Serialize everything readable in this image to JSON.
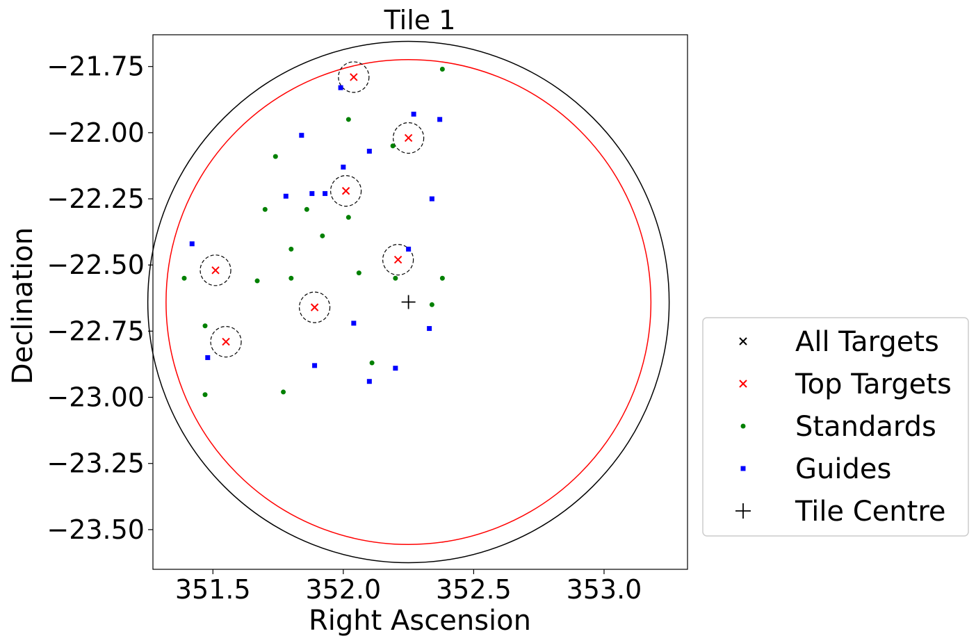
{
  "chart_data": {
    "type": "scatter",
    "title": "Tile 1",
    "xlabel": "Right Ascension",
    "ylabel": "Declination",
    "xlim": [
      351.27,
      353.32
    ],
    "ylim": [
      -23.65,
      -21.63
    ],
    "x_ticks": [
      351.5,
      352.0,
      352.5,
      353.0
    ],
    "x_tick_labels": [
      "351.5",
      "352.0",
      "352.5",
      "353.0"
    ],
    "y_ticks": [
      -21.75,
      -22.0,
      -22.25,
      -22.5,
      -22.75,
      -23.0,
      -23.25,
      -23.5
    ],
    "y_tick_labels": [
      "−21.75",
      "−22.00",
      "−22.25",
      "−22.50",
      "−22.75",
      "−23.00",
      "−23.25",
      "−23.50"
    ],
    "grid": false,
    "legend_position": "outside-right",
    "tile_centre": {
      "ra": 352.25,
      "dec": -22.64
    },
    "circles": [
      {
        "ra": 352.25,
        "dec": -22.64,
        "radius": 1.0,
        "color": "#000000"
      },
      {
        "ra": 352.25,
        "dec": -22.64,
        "radius": 0.93,
        "color": "#ff0000"
      }
    ],
    "series": [
      {
        "name": "All Targets",
        "marker": "x",
        "color": "#000000",
        "points": []
      },
      {
        "name": "Top Targets",
        "marker": "x",
        "color": "#ff0000",
        "circled": true,
        "points": [
          {
            "ra": 352.04,
            "dec": -21.79
          },
          {
            "ra": 352.25,
            "dec": -22.02
          },
          {
            "ra": 352.01,
            "dec": -22.22
          },
          {
            "ra": 351.51,
            "dec": -22.52
          },
          {
            "ra": 352.21,
            "dec": -22.48
          },
          {
            "ra": 351.89,
            "dec": -22.66
          },
          {
            "ra": 351.55,
            "dec": -22.79
          }
        ]
      },
      {
        "name": "Standards",
        "marker": "o",
        "color": "#008000",
        "points": [
          {
            "ra": 352.38,
            "dec": -21.76
          },
          {
            "ra": 352.02,
            "dec": -21.95
          },
          {
            "ra": 352.19,
            "dec": -22.05
          },
          {
            "ra": 351.74,
            "dec": -22.09
          },
          {
            "ra": 351.7,
            "dec": -22.29
          },
          {
            "ra": 351.86,
            "dec": -22.29
          },
          {
            "ra": 352.02,
            "dec": -22.32
          },
          {
            "ra": 351.92,
            "dec": -22.39
          },
          {
            "ra": 351.8,
            "dec": -22.44
          },
          {
            "ra": 352.06,
            "dec": -22.53
          },
          {
            "ra": 351.39,
            "dec": -22.55
          },
          {
            "ra": 351.67,
            "dec": -22.56
          },
          {
            "ra": 351.8,
            "dec": -22.55
          },
          {
            "ra": 352.2,
            "dec": -22.55
          },
          {
            "ra": 352.38,
            "dec": -22.55
          },
          {
            "ra": 352.34,
            "dec": -22.65
          },
          {
            "ra": 351.47,
            "dec": -22.73
          },
          {
            "ra": 352.11,
            "dec": -22.87
          },
          {
            "ra": 351.47,
            "dec": -22.99
          },
          {
            "ra": 351.77,
            "dec": -22.98
          }
        ]
      },
      {
        "name": "Guides",
        "marker": "s",
        "color": "#0000ff",
        "points": [
          {
            "ra": 351.99,
            "dec": -21.83
          },
          {
            "ra": 352.27,
            "dec": -21.93
          },
          {
            "ra": 352.37,
            "dec": -21.95
          },
          {
            "ra": 351.84,
            "dec": -22.01
          },
          {
            "ra": 352.1,
            "dec": -22.07
          },
          {
            "ra": 352.0,
            "dec": -22.13
          },
          {
            "ra": 351.78,
            "dec": -22.24
          },
          {
            "ra": 351.88,
            "dec": -22.23
          },
          {
            "ra": 351.93,
            "dec": -22.23
          },
          {
            "ra": 352.34,
            "dec": -22.25
          },
          {
            "ra": 351.42,
            "dec": -22.42
          },
          {
            "ra": 352.25,
            "dec": -22.44
          },
          {
            "ra": 352.04,
            "dec": -22.72
          },
          {
            "ra": 352.33,
            "dec": -22.74
          },
          {
            "ra": 351.48,
            "dec": -22.85
          },
          {
            "ra": 351.89,
            "dec": -22.88
          },
          {
            "ra": 352.2,
            "dec": -22.89
          },
          {
            "ra": 352.1,
            "dec": -22.94
          }
        ]
      },
      {
        "name": "Tile Centre",
        "marker": "+",
        "color": "#000000",
        "points": [
          {
            "ra": 352.25,
            "dec": -22.64
          }
        ]
      }
    ]
  }
}
